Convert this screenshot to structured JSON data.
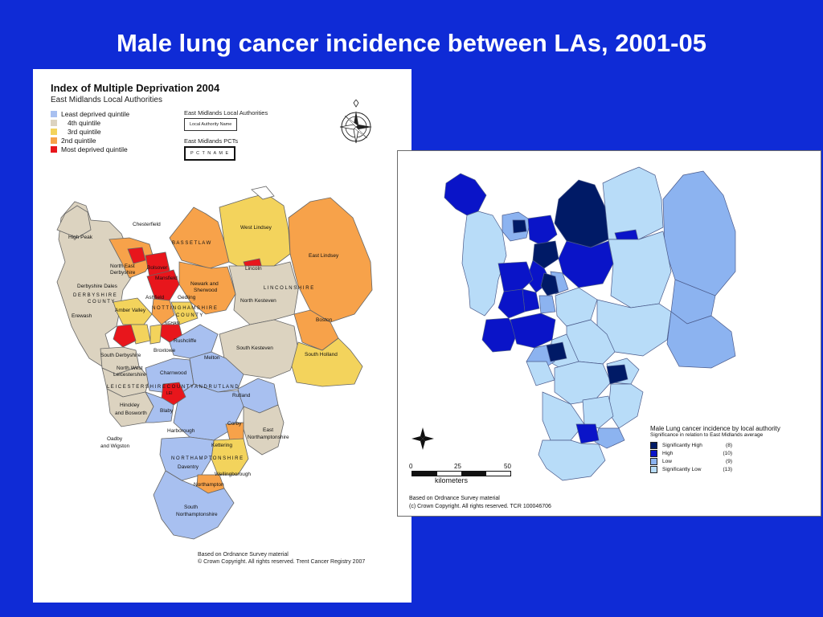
{
  "slide_title": "Male lung cancer incidence between LAs, 2001-05",
  "left_map": {
    "title": "Index of Multiple Deprivation 2004",
    "subtitle": "East Midlands Local Authorities",
    "legend": [
      {
        "label": "Least deprived quintile",
        "color": "#a8c0f0"
      },
      {
        "label": "4th quintile",
        "color": "#dcd3c0"
      },
      {
        "label": "3rd  quintile",
        "color": "#f3d35c"
      },
      {
        "label": "2nd  quintile",
        "color": "#f7a24a"
      },
      {
        "label": "Most deprived quintile",
        "color": "#e8161c"
      }
    ],
    "key_la_heading": "East Midlands Local Authorities",
    "key_la_box": "Local Authority Name",
    "key_pct_heading": "East Midlands PCTs",
    "key_pct_box": "P C T N A M E",
    "labels": {
      "chesterfield": "Chesterfield",
      "high_peak": "High Peak",
      "bassetlaw": "B A S S E T L A W",
      "west_lindsey": "West Lindsey",
      "east_lindsey": "East Lindsey",
      "ne_derbyshire_1": "North East",
      "ne_derbyshire_2": "Derbyshire",
      "bolsover": "Bolsover",
      "mansfield": "Mansfield",
      "lincoln": "Lincoln",
      "newark_1": "Newark and",
      "newark_2": "Sherwood",
      "derbyshire_dales": "Derbyshire Dales",
      "derbyshire_county_1": "D E R B Y S H I R E",
      "derbyshire_county_2": "C O U N T Y",
      "ashfield": "Ashfield",
      "gedling": "Gedling",
      "lincolnshire": "L I N C O L N S H I R E",
      "amber_valley": "Amber Valley",
      "notts_county_1": "N O T T I N G H A M S H I R E",
      "notts_county_2": "C O U N T Y",
      "north_kesteven": "North Kesteven",
      "erewash": "Erewash",
      "nottingham": "NGHAM",
      "boston": "Boston",
      "rushcliffe": "Rushcliffe",
      "south_derbyshire": "South Derbyshire",
      "broxtowe": "Broxtowe",
      "south_kesteven": "South Kesteven",
      "south_holland": "South Holland",
      "melton": "Melton",
      "nw_leics_1": "North West",
      "nw_leics_2": "Leicestershire",
      "charnwood": "Charnwood",
      "leics_county": "L E I C E S T E R S H I R E  C O U N T Y  A N D  R U T L A N D",
      "rutland": "Rutland",
      "hinckley_1": "Hinckley",
      "hinckley_2": "and Bosworth",
      "blaby": "Blaby",
      "leicester": "LEI",
      "corby": "Corby",
      "oadby_1": "Oadby",
      "oadby_2": "and Wigston",
      "harborough": "Harborough",
      "east_northants_1": "East",
      "east_northants_2": "Northamptonshire",
      "kettering": "Kettering",
      "northamptonshire": "N O R T H A M P T O N S H I R E",
      "daventry": "Daventry",
      "wellingborough": "Wellingborough",
      "northampton": "Northampton",
      "south_northants_1": "South",
      "south_northants_2": "Northamptonshire"
    },
    "notes": [
      "Based on Ordnance Survey material",
      "© Crown Copyright. All rights reserved. Trent Cancer Registry 2007"
    ]
  },
  "right_map": {
    "legend_title": "Male Lung cancer incidence by local authority",
    "legend_subtitle": "Significance in relation to East Midlands average",
    "legend": [
      {
        "label": "Significantly  High",
        "count": "(8)",
        "color": "#001a66"
      },
      {
        "label": "High",
        "count": "(10)",
        "color": "#0a14c8"
      },
      {
        "label": "Low",
        "count": "(9)",
        "color": "#8cb3f0"
      },
      {
        "label": "Significantly  Low",
        "count": "(13)",
        "color": "#b8dcf8"
      }
    ],
    "scale": {
      "ticks": [
        "0",
        "25",
        "50"
      ],
      "units": "kilometers"
    },
    "notes": [
      "Based on Ordnance Survey material",
      "(c) Crown Copyright. All rights reserved. TCR 100046706"
    ]
  }
}
